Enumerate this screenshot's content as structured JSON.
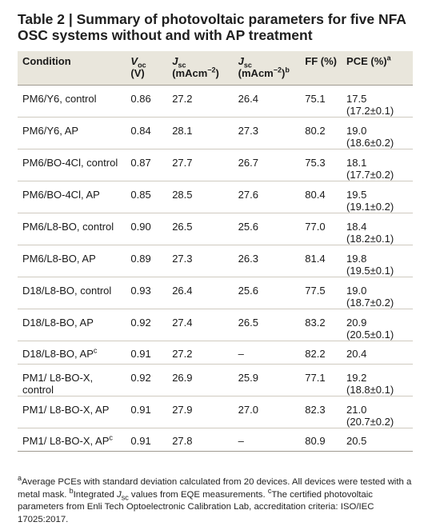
{
  "title": "Table 2 | Summary of photovoltaic parameters for five NFA OSC systems without and with AP treatment",
  "headers": {
    "condition": "Condition",
    "voc_sym": "V",
    "voc_sub": "oc",
    "voc_unit": "(V)",
    "jsc_sym": "J",
    "jsc_sub": "sc",
    "jsc_unit": "(mAcm",
    "jsc_unit_sup": "−2",
    "jsc_unit_end": ")",
    "jsc2_sym": "J",
    "jsc2_sub": "sc",
    "jsc2_unit": "(mAcm",
    "jsc2_unit_sup": "−2",
    "jsc2_unit_end": ")",
    "jsc2_mark": "b",
    "ff": "FF (%)",
    "pce": "PCE (%)",
    "pce_mark": "a"
  },
  "rows": [
    {
      "condition": "PM6/Y6, control",
      "voc": "0.86",
      "jsc": "27.2",
      "jsc_eqe": "26.4",
      "ff": "75.1",
      "pce": "17.5",
      "pce_sd": "(17.2±0.1)"
    },
    {
      "condition": "PM6/Y6, AP",
      "voc": "0.84",
      "jsc": "28.1",
      "jsc_eqe": "27.3",
      "ff": "80.2",
      "pce": "19.0",
      "pce_sd": "(18.6±0.2)"
    },
    {
      "condition": "PM6/BO-4Cl, control",
      "voc": "0.87",
      "jsc": "27.7",
      "jsc_eqe": "26.7",
      "ff": "75.3",
      "pce": "18.1",
      "pce_sd": "(17.7±0.2)"
    },
    {
      "condition": "PM6/BO-4Cl, AP",
      "voc": "0.85",
      "jsc": "28.5",
      "jsc_eqe": "27.6",
      "ff": "80.4",
      "pce": "19.5",
      "pce_sd": "(19.1±0.2)"
    },
    {
      "condition": "PM6/L8-BO, control",
      "voc": "0.90",
      "jsc": "26.5",
      "jsc_eqe": "25.6",
      "ff": "77.0",
      "pce": "18.4",
      "pce_sd": "(18.2±0.1)"
    },
    {
      "condition": "PM6/L8-BO, AP",
      "voc": "0.89",
      "jsc": "27.3",
      "jsc_eqe": "26.3",
      "ff": "81.4",
      "pce": "19.8",
      "pce_sd": "(19.5±0.1)"
    },
    {
      "condition": "D18/L8-BO, control",
      "voc": "0.93",
      "jsc": "26.4",
      "jsc_eqe": "25.6",
      "ff": "77.5",
      "pce": "19.0",
      "pce_sd": "(18.7±0.2)"
    },
    {
      "condition": "D18/L8-BO, AP",
      "voc": "0.92",
      "jsc": "27.4",
      "jsc_eqe": "26.5",
      "ff": "83.2",
      "pce": "20.9",
      "pce_sd": "(20.5±0.1)"
    },
    {
      "condition": "D18/L8-BO, AP",
      "condition_mark": "c",
      "voc": "0.91",
      "jsc": "27.2",
      "jsc_eqe": "–",
      "ff": "82.2",
      "pce": "20.4",
      "pce_sd": ""
    },
    {
      "condition": "PM1/ L8-BO-X,",
      "condition_line2": "control",
      "voc": "0.92",
      "jsc": "26.9",
      "jsc_eqe": "25.9",
      "ff": "77.1",
      "pce": "19.2",
      "pce_sd": "(18.8±0.1)"
    },
    {
      "condition": "PM1/ L8-BO-X, AP",
      "voc": "0.91",
      "jsc": "27.9",
      "jsc_eqe": "27.0",
      "ff": "82.3",
      "pce": "21.0",
      "pce_sd": "(20.7±0.2)"
    },
    {
      "condition": "PM1/ L8-BO-X, AP",
      "condition_mark": "c",
      "voc": "0.91",
      "jsc": "27.8",
      "jsc_eqe": "–",
      "ff": "80.9",
      "pce": "20.5",
      "pce_sd": ""
    }
  ],
  "footnote": {
    "a_mark": "a",
    "a_text": "Average PCEs with standard deviation calculated from 20 devices. All devices were tested with a metal mask. ",
    "b_mark": "b",
    "b_text_pre": "Integrated ",
    "b_sym": "J",
    "b_sub": "sc",
    "b_text_post": " values from EQE measurements. ",
    "c_mark": "c",
    "c_text": "The certified photovoltaic parameters from Enli Tech Optoelectronic Calibration Lab, accreditation criteria: ISO/IEC 17025:2017."
  }
}
